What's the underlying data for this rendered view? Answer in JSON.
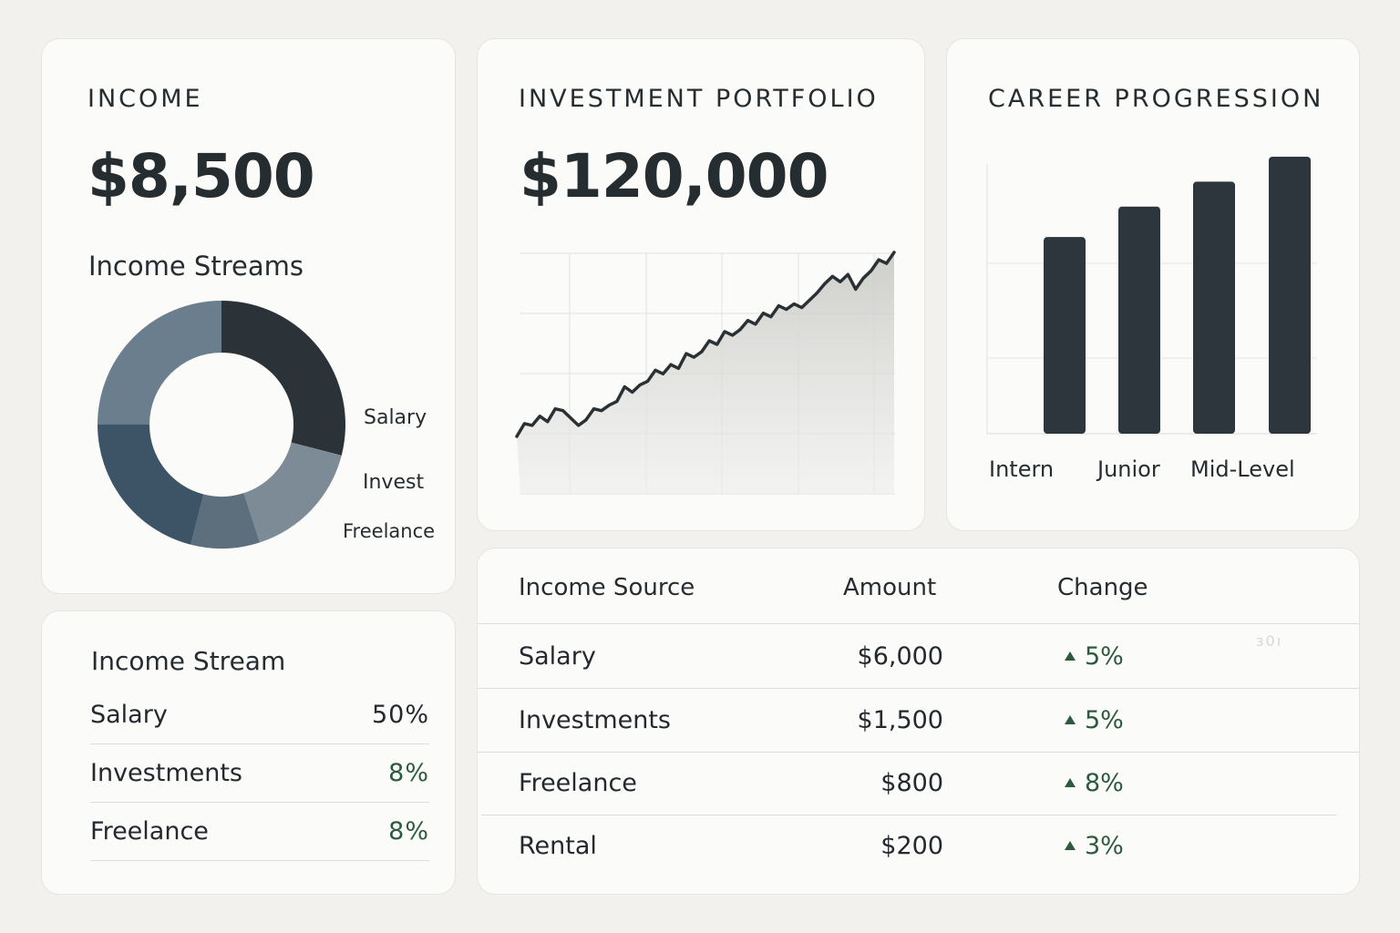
{
  "income_card": {
    "title": "INCOME",
    "amount": "$8,500",
    "subtitle": "Income Streams",
    "donut_labels": [
      "Salary",
      "Invest",
      "Freelance"
    ],
    "donut_colors": [
      "#2b3339",
      "#7c8b96",
      "#5d6f7d",
      "#3d5466",
      "#6a7e8d"
    ]
  },
  "portfolio_card": {
    "title": "INVESTMENT PORTFOLIO",
    "amount": "$120,000"
  },
  "career_card": {
    "title": "CAREER PROGRESSION",
    "labels": [
      "Intern",
      "Junior",
      "Mid-Level"
    ]
  },
  "stream_card": {
    "title": "Income Stream",
    "rows": [
      {
        "name": "Salary",
        "value": "50%"
      },
      {
        "name": "Investments",
        "value": "8%"
      },
      {
        "name": "Freelance",
        "value": "8%"
      }
    ]
  },
  "table": {
    "headers": [
      "Income Source",
      "Amount",
      "Change"
    ],
    "rows": [
      {
        "source": "Salary",
        "amount": "$6,000",
        "change": "5%"
      },
      {
        "source": "Investments",
        "amount": "$1,500",
        "change": "5%"
      },
      {
        "source": "Freelance",
        "amount": "$800",
        "change": "8%"
      },
      {
        "source": "Rental",
        "amount": "$200",
        "change": "3%"
      }
    ],
    "faint_mark": "ɜ0ı"
  },
  "colors": {
    "dark": "#2d363c",
    "positive": "#2c5a3c",
    "card": "#fbfbf9",
    "background": "#f2f1ee"
  },
  "chart_data": [
    {
      "type": "pie",
      "title": "Income Streams",
      "slices": [
        {
          "label": "Salary",
          "value": 29
        },
        {
          "label": "",
          "value": 16
        },
        {
          "label": "",
          "value": 9
        },
        {
          "label": "",
          "value": 21
        },
        {
          "label": "",
          "value": 25
        }
      ]
    },
    {
      "type": "area",
      "title": "INVESTMENT PORTFOLIO",
      "x": [
        0,
        1,
        2,
        3,
        4,
        5,
        6,
        7,
        8,
        9,
        10,
        11,
        12,
        13,
        14,
        15,
        16,
        17,
        18,
        19,
        20,
        21,
        22,
        23,
        24,
        25,
        26,
        27,
        28,
        29,
        30,
        31,
        32,
        33,
        34,
        35,
        36,
        37,
        38,
        39,
        40,
        41,
        42,
        43,
        44,
        45,
        46,
        47,
        48,
        49
      ],
      "values": [
        0.0,
        0.07,
        0.06,
        0.11,
        0.08,
        0.15,
        0.14,
        0.1,
        0.06,
        0.09,
        0.15,
        0.14,
        0.17,
        0.19,
        0.27,
        0.24,
        0.28,
        0.3,
        0.36,
        0.34,
        0.39,
        0.37,
        0.45,
        0.43,
        0.46,
        0.52,
        0.5,
        0.57,
        0.55,
        0.58,
        0.63,
        0.61,
        0.67,
        0.65,
        0.71,
        0.69,
        0.72,
        0.7,
        0.74,
        0.78,
        0.83,
        0.87,
        0.84,
        0.88,
        0.8,
        0.86,
        0.9,
        0.96,
        0.94,
        1.0
      ],
      "grid": true
    },
    {
      "type": "bar",
      "title": "CAREER PROGRESSION",
      "categories": [
        "Intern",
        "Junior",
        "Mid-Level",
        ""
      ],
      "values": [
        0.71,
        0.82,
        0.91,
        1.0
      ]
    }
  ]
}
